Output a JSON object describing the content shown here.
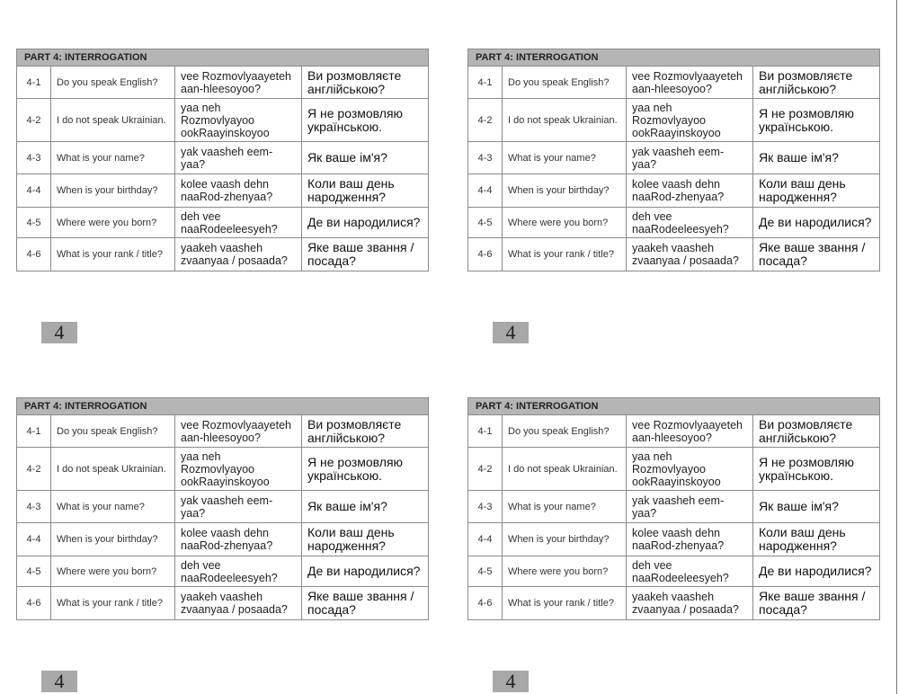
{
  "title": "PART 4:  INTERROGATION",
  "page_number": "4",
  "rows": [
    {
      "num": "4-1",
      "english": "Do you speak English?",
      "transliteration": "vee Rozmovlyaayeteh aan-hleesoyoo?",
      "ukrainian": "Ви розмовляєте англійською?"
    },
    {
      "num": "4-2",
      "english": "I do not speak Ukrainian.",
      "transliteration": "yaa neh Rozmovlyayoo ookRaayinskoyoo",
      "ukrainian": "Я не розмовляю українською."
    },
    {
      "num": "4-3",
      "english": "What is your name?",
      "transliteration": "yak vaasheh eem-yaa?",
      "ukrainian": "Як ваше ім'я?"
    },
    {
      "num": "4-4",
      "english": "When is your birthday?",
      "transliteration": "kolee vaash dehn naaRod-zhenyaa?",
      "ukrainian": "Коли ваш день народження?"
    },
    {
      "num": "4-5",
      "english": "Where were you born?",
      "transliteration": "deh vee naaRodeeleesyeh?",
      "ukrainian": "Де ви народилися?"
    },
    {
      "num": "4-6",
      "english": "What is your rank / title?",
      "transliteration": "yaakeh vaasheh zvaanyaa / posaada?",
      "ukrainian": "Яке ваше звання / посада?"
    }
  ]
}
